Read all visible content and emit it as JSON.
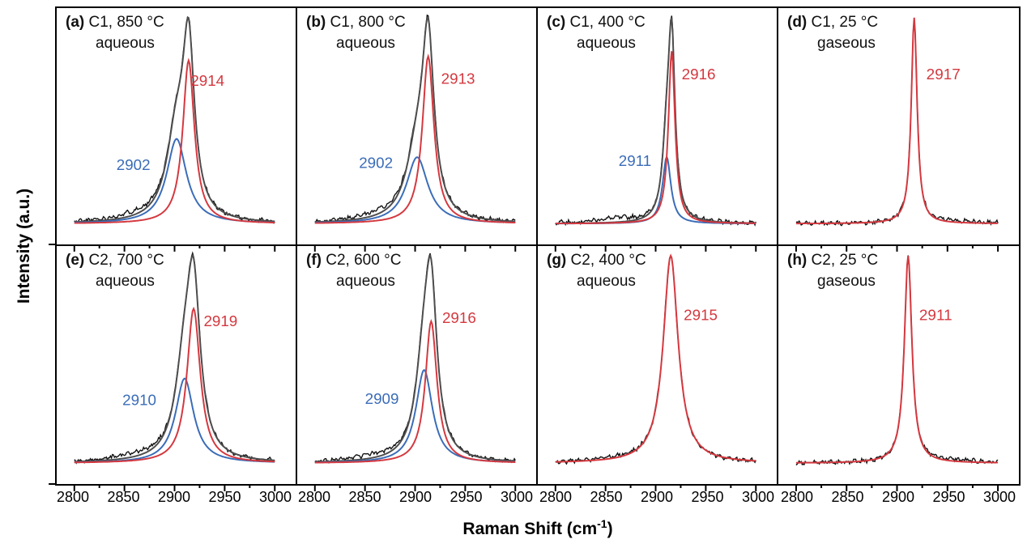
{
  "chart_data": {
    "type": "line",
    "xlabel": {
      "pre": "Raman Shift (cm",
      "sup": "-1",
      "post": ")"
    },
    "ylabel": "Intensity (a.u.)",
    "x_range": [
      2800,
      3000
    ],
    "x_ticks": [
      "2800",
      "2850",
      "2900",
      "2950",
      "3000"
    ],
    "x_minor_ticks": [
      2825,
      2875,
      2925,
      2975
    ],
    "grid": false,
    "colors": {
      "measured_data": "#121212",
      "total_fit": "#4d4d4d",
      "red_component": "#d4383f",
      "blue_component": "#3a6cb8",
      "axis": "#000000"
    },
    "panels": [
      {
        "id": "a",
        "tag": "(a)",
        "condition": "C1, 850 °C",
        "phase": "aqueous",
        "total_fit": true,
        "peaks": [
          {
            "name": "red",
            "label": "2914",
            "center": 2914,
            "amplitude": 0.77,
            "hwhm": 7,
            "label_x": 2916,
            "label_y": 0.67
          },
          {
            "name": "blue",
            "label": "2902",
            "center": 2902,
            "amplitude": 0.4,
            "hwhm": 12,
            "label_x": 2842,
            "label_y": 0.26
          }
        ]
      },
      {
        "id": "b",
        "tag": "(b)",
        "condition": "C1, 800 °C",
        "phase": "aqueous",
        "total_fit": true,
        "peaks": [
          {
            "name": "red",
            "label": "2913",
            "center": 2913,
            "amplitude": 0.78,
            "hwhm": 7,
            "label_x": 2926,
            "label_y": 0.68
          },
          {
            "name": "blue",
            "label": "2902",
            "center": 2902,
            "amplitude": 0.31,
            "hwhm": 13,
            "label_x": 2844,
            "label_y": 0.27
          }
        ]
      },
      {
        "id": "c",
        "tag": "(c)",
        "condition": "C1, 400 °C",
        "phase": "aqueous",
        "total_fit": true,
        "peaks": [
          {
            "name": "red",
            "label": "2916",
            "center": 2916,
            "amplitude": 0.8,
            "hwhm": 4,
            "label_x": 2926,
            "label_y": 0.7
          },
          {
            "name": "blue",
            "label": "2911",
            "center": 2911,
            "amplitude": 0.31,
            "hwhm": 5,
            "label_x": 2863,
            "label_y": 0.28
          }
        ]
      },
      {
        "id": "d",
        "tag": "(d)",
        "condition": "C1, 25 °C",
        "phase": "gaseous",
        "total_fit": false,
        "peaks": [
          {
            "name": "red",
            "label": "2917",
            "center": 2917,
            "amplitude": 1.0,
            "hwhm": 3.5,
            "label_x": 2929,
            "label_y": 0.7
          }
        ]
      },
      {
        "id": "e",
        "tag": "(e)",
        "condition": "C2, 700 °C",
        "phase": "aqueous",
        "total_fit": true,
        "peaks": [
          {
            "name": "red",
            "label": "2919",
            "center": 2919,
            "amplitude": 0.73,
            "hwhm": 8,
            "label_x": 2929,
            "label_y": 0.66
          },
          {
            "name": "blue",
            "label": "2910",
            "center": 2910,
            "amplitude": 0.4,
            "hwhm": 11,
            "label_x": 2848,
            "label_y": 0.28
          }
        ]
      },
      {
        "id": "f",
        "tag": "(f)",
        "condition": "C2, 600 °C",
        "phase": "aqueous",
        "total_fit": true,
        "peaks": [
          {
            "name": "red",
            "label": "2916",
            "center": 2916,
            "amplitude": 0.67,
            "hwhm": 7,
            "label_x": 2927,
            "label_y": 0.675
          },
          {
            "name": "blue",
            "label": "2909",
            "center": 2909,
            "amplitude": 0.44,
            "hwhm": 10,
            "label_x": 2850,
            "label_y": 0.285
          }
        ]
      },
      {
        "id": "g",
        "tag": "(g)",
        "condition": "C2, 400 °C",
        "phase": "aqueous",
        "total_fit": false,
        "peaks": [
          {
            "name": "red",
            "label": "2915",
            "center": 2915,
            "amplitude": 1.0,
            "hwhm": 9,
            "label_x": 2928,
            "label_y": 0.69
          }
        ]
      },
      {
        "id": "h",
        "tag": "(h)",
        "condition": "C2, 25 °C",
        "phase": "gaseous",
        "total_fit": false,
        "peaks": [
          {
            "name": "red",
            "label": "2911",
            "center": 2911,
            "amplitude": 1.0,
            "hwhm": 4.5,
            "label_x": 2922,
            "label_y": 0.69
          }
        ]
      }
    ]
  }
}
